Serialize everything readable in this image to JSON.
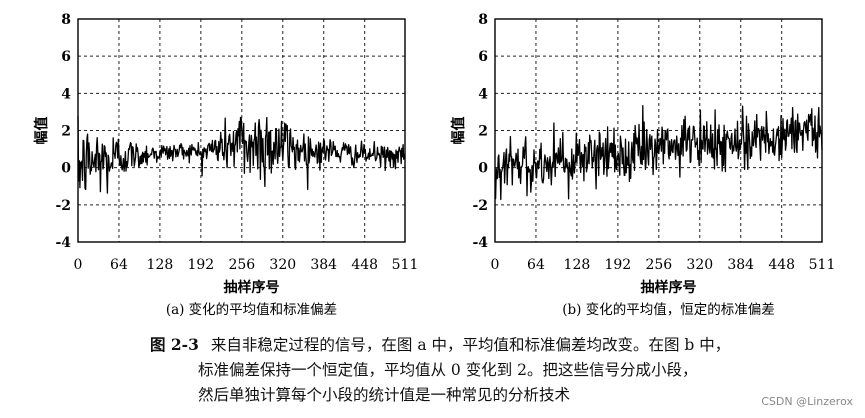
{
  "chart_data": [
    {
      "type": "line",
      "title": "",
      "caption": "(a) 变化的平均值和标准偏差",
      "xlabel": "抽样序号",
      "ylabel": "幅值",
      "xlim": [
        0,
        511
      ],
      "ylim": [
        -4,
        8
      ],
      "xticks": [
        0,
        64,
        128,
        192,
        256,
        320,
        384,
        448,
        511
      ],
      "yticks": [
        -4,
        -2,
        0,
        2,
        4,
        6,
        8
      ],
      "grid": true,
      "series": [
        {
          "x": [
            0,
            16,
            32,
            48,
            64,
            80,
            96,
            112,
            128,
            144,
            160,
            176,
            192,
            208,
            224,
            240,
            256,
            272,
            288,
            304,
            320,
            336,
            352,
            368,
            384,
            400,
            416,
            432,
            448,
            464,
            480,
            496,
            511
          ],
          "y": [
            0,
            0.3,
            0.4,
            0.3,
            0.6,
            0.7,
            0.6,
            0.8,
            0.8,
            0.8,
            0.9,
            0.9,
            0.8,
            1.0,
            1.1,
            1.3,
            1.3,
            1.2,
            1.3,
            1.3,
            1.2,
            1.0,
            1.0,
            0.9,
            0.9,
            0.9,
            0.8,
            0.7,
            0.7,
            0.7,
            0.6,
            0.6,
            0.5
          ],
          "std": [
            1.0,
            1.0,
            1.0,
            0.9,
            0.7,
            0.45,
            0.35,
            0.3,
            0.3,
            0.25,
            0.25,
            0.25,
            0.3,
            0.4,
            0.55,
            0.8,
            1.0,
            1.1,
            1.1,
            1.0,
            0.9,
            0.7,
            0.55,
            0.45,
            0.4,
            0.35,
            0.35,
            0.3,
            0.3,
            0.3,
            0.3,
            0.3,
            0.3
          ]
        }
      ]
    },
    {
      "type": "line",
      "title": "",
      "caption": "(b) 变化的平均值，恒定的标准偏差",
      "xlabel": "抽样序号",
      "ylabel": "幅值",
      "xlim": [
        0,
        511
      ],
      "ylim": [
        -4,
        8
      ],
      "xticks": [
        0,
        64,
        128,
        192,
        256,
        320,
        384,
        448,
        511
      ],
      "yticks": [
        -4,
        -2,
        0,
        2,
        4,
        6,
        8
      ],
      "grid": true,
      "series": [
        {
          "x": [
            0,
            511
          ],
          "y": [
            0,
            2
          ],
          "std": [
            0.75,
            0.75
          ]
        }
      ]
    }
  ],
  "caption": {
    "figure_no": "图 2-3",
    "line1": "来自非稳定过程的信号，在图 a 中，平均值和标准偏差均改变。在图 b 中，",
    "line2": "标准偏差保持一个恒定值，平均值从 0 变化到 2。把这些信号分成小段，",
    "line3": "然后单独计算每个小段的统计值是一种常见的分析技术"
  },
  "watermark": "CSDN @Linzerox"
}
